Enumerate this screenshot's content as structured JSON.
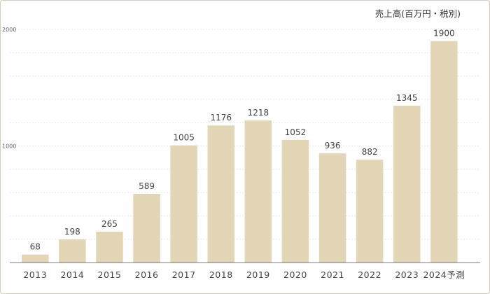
{
  "chart_data": {
    "type": "bar",
    "title": "",
    "unit_label": "売上高(百万円・税別)",
    "xlabel": "",
    "ylabel": "",
    "categories": [
      "2013",
      "2014",
      "2015",
      "2016",
      "2017",
      "2018",
      "2019",
      "2020",
      "2021",
      "2022",
      "2023",
      "2024予測"
    ],
    "values": [
      68,
      198,
      265,
      589,
      1005,
      1176,
      1218,
      1052,
      936,
      882,
      1345,
      1900
    ],
    "ylim": [
      0,
      2000
    ],
    "y_ticks": [
      "1000",
      "2000"
    ],
    "grid": true,
    "legend": "none",
    "colors": {
      "bar": "#e2d6b6",
      "frame": "#d7ccb5",
      "text": "#444444"
    }
  }
}
